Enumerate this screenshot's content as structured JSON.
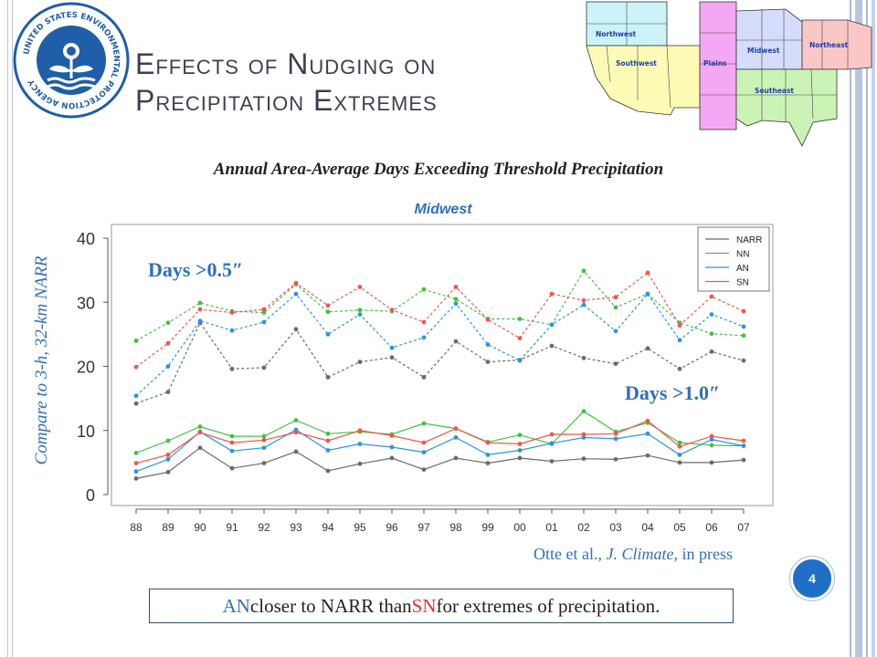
{
  "slide": {
    "title_line1": "Effects of Nudging on",
    "title_line2": "Precipitation Extremes",
    "subtitle": "Annual Area-Average Days Exceeding Threshold Precipitation",
    "panel_title": "Midwest",
    "ylabel": "Compare to 3-h, 32-km NARR",
    "citation_author": "Otte et al.,",
    "citation_journal": "J. Climate,",
    "citation_status": "in press",
    "page_number": "4",
    "note_an": "AN",
    "note_mid": " closer to NARR than ",
    "note_sn": "SN",
    "note_end": " for extremes of precipitation.",
    "seal_text": "UNITED STATES ENVIRONMENTAL PROTECTION AGENCY"
  },
  "region_map": {
    "regions": [
      {
        "name": "Northwest",
        "color": "#ccf3f7"
      },
      {
        "name": "Southwest",
        "color": "#fbfbb6"
      },
      {
        "name": "Plains",
        "color": "#f4a8f4"
      },
      {
        "name": "Midwest",
        "color": "#d6ddfb"
      },
      {
        "name": "Northeast",
        "color": "#fbc6c6"
      },
      {
        "name": "Southeast",
        "color": "#ccf3b6"
      }
    ]
  },
  "chart_data": {
    "type": "line",
    "categories": [
      "88",
      "89",
      "90",
      "91",
      "92",
      "93",
      "94",
      "95",
      "96",
      "97",
      "98",
      "99",
      "00",
      "01",
      "02",
      "03",
      "04",
      "05",
      "06",
      "07"
    ],
    "ylim": [
      0,
      40
    ],
    "yticks": [
      "0",
      "10",
      "20",
      "30",
      "40"
    ],
    "annotations": [
      "Days >0.5″",
      "Days >1.0″"
    ],
    "legend_placement": "top-right",
    "series": [
      {
        "name": "NARR",
        "group": "0.5",
        "color": "#6b6b6b",
        "values": [
          14.2,
          16.0,
          26.8,
          19.6,
          19.8,
          25.8,
          18.3,
          20.7,
          21.4,
          18.3,
          23.9,
          20.7,
          21.0,
          23.2,
          21.3,
          20.4,
          22.8,
          19.6,
          22.3,
          20.9
        ]
      },
      {
        "name": "NN",
        "group": "0.5",
        "color": "#43c043",
        "values": [
          24.0,
          26.8,
          29.9,
          28.6,
          28.4,
          32.8,
          28.5,
          28.8,
          28.6,
          32.0,
          30.5,
          27.4,
          27.4,
          26.5,
          34.9,
          29.2,
          31.3,
          26.8,
          25.1,
          24.8
        ]
      },
      {
        "name": "AN",
        "group": "0.5",
        "color": "#2d94dc",
        "values": [
          15.4,
          20.0,
          27.1,
          25.6,
          26.9,
          31.3,
          25.0,
          28.1,
          22.9,
          24.5,
          29.8,
          23.4,
          20.9,
          26.5,
          29.6,
          25.5,
          31.3,
          24.1,
          28.1,
          26.2
        ]
      },
      {
        "name": "SN",
        "group": "0.5",
        "color": "#f0564b",
        "values": [
          19.9,
          23.6,
          28.9,
          28.4,
          28.9,
          33.0,
          29.5,
          32.4,
          28.8,
          26.9,
          32.4,
          27.3,
          24.4,
          31.3,
          30.3,
          30.8,
          34.6,
          26.4,
          30.9,
          28.6
        ]
      },
      {
        "name": "NARR",
        "group": "1.0",
        "color": "#6b6b6b",
        "values": [
          2.5,
          3.5,
          7.3,
          4.1,
          4.9,
          6.7,
          3.7,
          4.8,
          5.7,
          3.9,
          5.7,
          4.9,
          5.7,
          5.2,
          5.6,
          5.5,
          6.1,
          5.0,
          5.0,
          5.4
        ]
      },
      {
        "name": "NN",
        "group": "1.0",
        "color": "#43c043",
        "values": [
          6.5,
          8.4,
          10.6,
          9.1,
          9.1,
          11.6,
          9.5,
          9.8,
          9.4,
          11.1,
          10.3,
          8.2,
          9.3,
          7.9,
          13.0,
          9.8,
          11.2,
          8.1,
          7.7,
          7.6
        ]
      },
      {
        "name": "AN",
        "group": "1.0",
        "color": "#2d94dc",
        "values": [
          3.6,
          5.5,
          9.8,
          6.8,
          7.3,
          10.1,
          6.9,
          7.9,
          7.4,
          6.6,
          8.9,
          6.2,
          6.9,
          8.0,
          8.9,
          8.7,
          9.5,
          6.2,
          8.6,
          7.6
        ]
      },
      {
        "name": "SN",
        "group": "1.0",
        "color": "#f0564b",
        "values": [
          4.9,
          6.2,
          9.7,
          8.1,
          8.5,
          9.7,
          8.4,
          10.0,
          9.2,
          8.1,
          10.3,
          8.1,
          7.9,
          9.4,
          9.4,
          9.5,
          11.5,
          7.5,
          9.1,
          8.4
        ]
      }
    ]
  }
}
